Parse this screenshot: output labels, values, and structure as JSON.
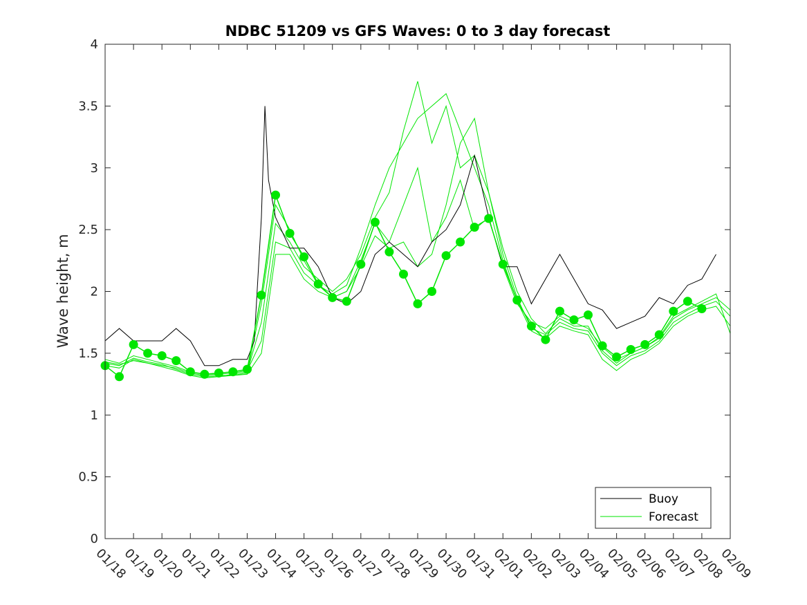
{
  "chart_data": {
    "type": "line",
    "title": "NDBC 51209 vs GFS Waves: 0 to 3 day forecast",
    "xlabel": "",
    "ylabel": "Wave height, m",
    "x_tick_labels": [
      "01/18",
      "01/19",
      "01/20",
      "01/21",
      "01/22",
      "01/23",
      "01/24",
      "01/25",
      "01/26",
      "01/27",
      "01/28",
      "01/29",
      "01/30",
      "01/31",
      "02/01",
      "02/02",
      "02/03",
      "02/04",
      "02/05",
      "02/06",
      "02/07",
      "02/08",
      "02/09"
    ],
    "xlim": [
      "01/18",
      "02/09"
    ],
    "ylim": [
      0,
      4
    ],
    "y_ticks": [
      0,
      0.5,
      1,
      1.5,
      2,
      2.5,
      3,
      3.5,
      4
    ],
    "y_tick_labels": [
      "0",
      "0.5",
      "1",
      "1.5",
      "2",
      "2.5",
      "3",
      "3.5",
      "4"
    ],
    "grid": false,
    "legend_position": "bottom-right",
    "colors": {
      "buoy": "#000000",
      "forecast": "#00e600"
    },
    "series": [
      {
        "name": "Buoy",
        "x": [
          "01/18",
          "01/18 12h",
          "01/19",
          "01/19 12h",
          "01/20",
          "01/20 12h",
          "01/21",
          "01/21 12h",
          "01/22",
          "01/22 12h",
          "01/23",
          "01/23 06h",
          "01/23 12h",
          "01/23 15h",
          "01/23 18h",
          "01/24",
          "01/24 12h",
          "01/25",
          "01/25 12h",
          "01/26",
          "01/26 12h",
          "01/27",
          "01/27 12h",
          "01/28",
          "01/28 12h",
          "01/29",
          "01/29 12h",
          "01/30",
          "01/30 12h",
          "01/31",
          "01/31 12h",
          "02/01",
          "02/01 12h",
          "02/02",
          "02/02 12h",
          "02/03",
          "02/03 12h",
          "02/04",
          "02/04 12h",
          "02/05",
          "02/05 12h",
          "02/06",
          "02/06 12h",
          "02/07",
          "02/07 12h",
          "02/08",
          "02/08 12h"
        ],
        "y": [
          1.6,
          1.7,
          1.6,
          1.6,
          1.6,
          1.7,
          1.6,
          1.4,
          1.4,
          1.45,
          1.45,
          1.6,
          2.6,
          3.5,
          2.9,
          2.6,
          2.35,
          2.35,
          2.2,
          1.95,
          1.9,
          2.0,
          2.3,
          2.4,
          2.3,
          2.2,
          2.4,
          2.5,
          2.7,
          3.1,
          2.6,
          2.2,
          2.2,
          1.9,
          2.1,
          2.3,
          2.1,
          1.9,
          1.85,
          1.7,
          1.75,
          1.8,
          1.95,
          1.9,
          2.05,
          2.1,
          2.3
        ]
      },
      {
        "name": "Forecast",
        "x": [
          "01/18",
          "01/18 12h",
          "01/19",
          "01/19 12h",
          "01/20",
          "01/20 12h",
          "01/21",
          "01/21 12h",
          "01/22",
          "01/22 12h",
          "01/23",
          "01/23 12h",
          "01/24",
          "01/24 12h",
          "01/25",
          "01/25 12h",
          "01/26",
          "01/26 12h",
          "01/27",
          "01/27 12h",
          "01/28",
          "01/28 12h",
          "01/29",
          "01/29 12h",
          "01/30",
          "01/30 12h",
          "01/31",
          "01/31 12h",
          "02/01",
          "02/01 12h",
          "02/02",
          "02/02 12h",
          "02/03",
          "02/03 12h",
          "02/04",
          "02/04 12h",
          "02/05",
          "02/05 12h",
          "02/06",
          "02/06 12h",
          "02/07",
          "02/07 12h",
          "02/08"
        ],
        "y": [
          1.4,
          1.31,
          1.57,
          1.5,
          1.48,
          1.44,
          1.35,
          1.33,
          1.34,
          1.35,
          1.37,
          1.97,
          2.78,
          2.47,
          2.28,
          2.06,
          1.95,
          1.92,
          2.22,
          2.56,
          2.32,
          2.14,
          1.9,
          2.0,
          2.29,
          2.4,
          2.52,
          2.59,
          2.22,
          1.93,
          1.72,
          1.61,
          1.84,
          1.77,
          1.81,
          1.56,
          1.47,
          1.53,
          1.57,
          1.65,
          1.84,
          1.92,
          1.86
        ]
      }
    ],
    "forecast_runs_y": [
      [
        1.4,
        1.38,
        1.45,
        1.42,
        1.4,
        1.38,
        1.34,
        1.32,
        1.32,
        1.32,
        1.34,
        1.9,
        2.7,
        2.5,
        2.25,
        2.05,
        1.95,
        2.0,
        2.25,
        2.55,
        2.4,
        2.7,
        3.0,
        2.4,
        2.6,
        2.9,
        2.5,
        2.6,
        2.2,
        1.9,
        1.75,
        1.7,
        1.8,
        1.75,
        1.7,
        1.55,
        1.45,
        1.5,
        1.55,
        1.62,
        1.78,
        1.85,
        1.9,
        1.95,
        1.85
      ],
      [
        1.42,
        1.4,
        1.46,
        1.43,
        1.41,
        1.37,
        1.33,
        1.31,
        1.31,
        1.33,
        1.35,
        1.75,
        2.55,
        2.4,
        2.2,
        2.1,
        2.0,
        2.1,
        2.3,
        2.6,
        2.8,
        3.3,
        3.7,
        3.2,
        3.5,
        3.0,
        3.1,
        2.8,
        2.3,
        1.95,
        1.7,
        1.65,
        1.75,
        1.7,
        1.68,
        1.5,
        1.4,
        1.48,
        1.52,
        1.6,
        1.75,
        1.82,
        1.88,
        1.92,
        1.8
      ],
      [
        1.45,
        1.42,
        1.48,
        1.45,
        1.42,
        1.39,
        1.35,
        1.33,
        1.33,
        1.34,
        1.36,
        1.6,
        2.4,
        2.35,
        2.15,
        2.05,
        1.98,
        2.05,
        2.35,
        2.7,
        3.0,
        3.2,
        3.4,
        3.5,
        3.6,
        3.3,
        3.0,
        2.7,
        2.25,
        1.92,
        1.68,
        1.62,
        1.72,
        1.68,
        1.65,
        1.45,
        1.36,
        1.45,
        1.5,
        1.58,
        1.72,
        1.8,
        1.85,
        1.88,
        1.72
      ],
      [
        1.43,
        1.41,
        1.44,
        1.42,
        1.39,
        1.36,
        1.32,
        1.3,
        1.31,
        1.32,
        1.33,
        1.5,
        2.3,
        2.3,
        2.1,
        2.0,
        1.95,
        2.0,
        2.2,
        2.45,
        2.35,
        2.4,
        2.2,
        2.3,
        2.7,
        3.2,
        3.4,
        2.8,
        2.35,
        2.0,
        1.78,
        1.66,
        1.78,
        1.72,
        1.72,
        1.52,
        1.42,
        1.5,
        1.55,
        1.63,
        1.8,
        1.86,
        1.92,
        1.98,
        1.66
      ]
    ]
  }
}
